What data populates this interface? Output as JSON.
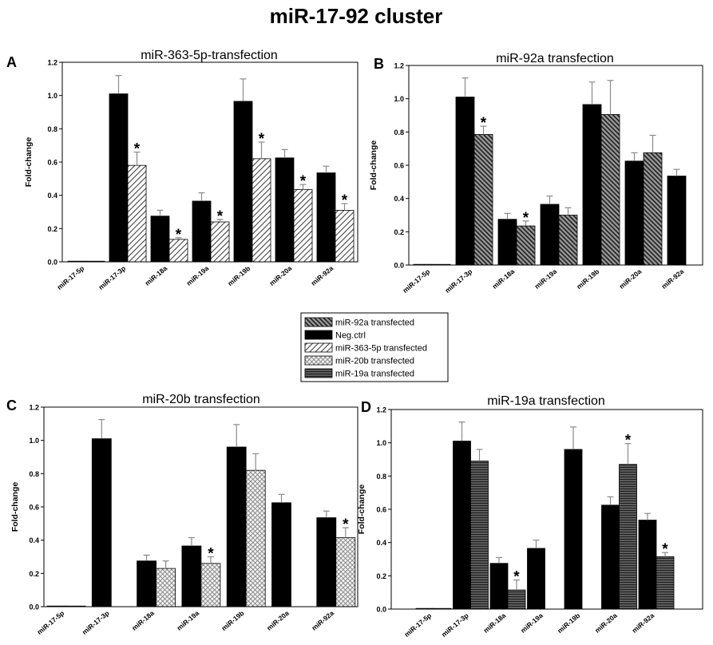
{
  "title": "miR-17-92 cluster",
  "legend": {
    "items": [
      {
        "label": "miR-92a transfected"
      },
      {
        "label": "Neg.ctrl"
      },
      {
        "label": "miR-363-5p transfected"
      },
      {
        "label": "miR-20b transfected"
      },
      {
        "label": "miR-19a transfected"
      }
    ]
  },
  "chart_data": [
    {
      "panel": "A",
      "type": "bar",
      "title": "miR-363-5p-transfection",
      "ylabel": "Fold-change",
      "ylim": [
        0,
        1.2
      ],
      "yticks": [
        "0.0",
        "0.2",
        "0.4",
        "0.6",
        "0.8",
        "1.0",
        "1.2"
      ],
      "significance_marker": "*",
      "categories": [
        "miR-17-5p",
        "miR-17-3p",
        "miR-18a",
        "miR-19a",
        "miR-19b",
        "miR-20a",
        "miR-92a"
      ],
      "series": [
        {
          "name": "Neg.ctrl",
          "values": [
            0.004,
            1.01,
            0.275,
            0.365,
            0.965,
            0.625,
            0.535
          ],
          "errors": [
            0,
            0.11,
            0.035,
            0.05,
            0.135,
            0.05,
            0.04
          ]
        },
        {
          "name": "miR-363-5p transfected",
          "values": [
            0.003,
            0.58,
            0.135,
            0.24,
            0.62,
            0.435,
            0.31
          ],
          "errors": [
            0,
            0.08,
            0.01,
            0.015,
            0.1,
            0.03,
            0.04
          ],
          "significant": [
            false,
            true,
            true,
            true,
            true,
            true,
            true
          ]
        }
      ]
    },
    {
      "panel": "B",
      "type": "bar",
      "title": "miR-92a transfection",
      "ylabel": "Fold-change",
      "ylim": [
        0,
        1.2
      ],
      "yticks": [
        "0.0",
        "0.2",
        "0.4",
        "0.6",
        "0.8",
        "1.0",
        "1.2"
      ],
      "significance_marker": "*",
      "categories": [
        "miR-17-5p",
        "miR-17-3p",
        "miR-18a",
        "miR-19a",
        "miR-19b",
        "miR-20a",
        "miR-92a"
      ],
      "series": [
        {
          "name": "Neg.ctrl",
          "values": [
            0.004,
            1.01,
            0.275,
            0.365,
            0.965,
            0.625,
            0.535
          ],
          "errors": [
            0,
            0.115,
            0.035,
            0.05,
            0.135,
            0.05,
            0.04
          ]
        },
        {
          "name": "miR-92a transfected",
          "values": [
            0.003,
            0.785,
            0.235,
            0.3,
            0.905,
            0.675,
            null
          ],
          "errors": [
            0,
            0.05,
            0.03,
            0.045,
            0.205,
            0.105,
            null
          ],
          "significant": [
            false,
            true,
            true,
            false,
            false,
            false,
            false
          ]
        }
      ]
    },
    {
      "panel": "C",
      "type": "bar",
      "title": "miR-20b transfection",
      "ylabel": "Fold-change",
      "ylim": [
        0,
        1.2
      ],
      "yticks": [
        "0.0",
        "0.2",
        "0.4",
        "0.6",
        "0.8",
        "1.0",
        "1.2"
      ],
      "significance_marker": "*",
      "categories": [
        "miR-17-5p",
        "miR-17-3p",
        "miR-18a",
        "miR-19a",
        "miR-19b",
        "miR-20a",
        "miR-92a"
      ],
      "series": [
        {
          "name": "Neg.ctrl",
          "values": [
            0.004,
            1.01,
            0.275,
            0.365,
            0.96,
            0.625,
            0.535
          ],
          "errors": [
            0,
            0.115,
            0.035,
            0.05,
            0.135,
            0.05,
            0.04
          ]
        },
        {
          "name": "miR-20b transfected",
          "values": [
            0.003,
            null,
            0.23,
            0.26,
            0.82,
            null,
            0.415
          ],
          "errors": [
            0,
            null,
            0.045,
            0.04,
            0.1,
            null,
            0.06
          ],
          "significant": [
            false,
            false,
            false,
            true,
            false,
            false,
            true
          ]
        }
      ]
    },
    {
      "panel": "D",
      "type": "bar",
      "title": "miR-19a transfection",
      "ylabel": "Fold-change",
      "ylim": [
        0,
        1.2
      ],
      "yticks": [
        "0.0",
        "0.2",
        "0.4",
        "0.6",
        "0.8",
        "1.0",
        "1.2"
      ],
      "significance_marker": "*",
      "categories": [
        "miR-17-5p",
        "miR-17-3p",
        "miR-18a",
        "miR-19a",
        "miR-19b",
        "miR-20a",
        "miR-92a"
      ],
      "series": [
        {
          "name": "Neg.ctrl",
          "values": [
            0.004,
            1.01,
            0.275,
            0.365,
            0.96,
            0.625,
            0.535
          ],
          "errors": [
            0,
            0.115,
            0.035,
            0.05,
            0.135,
            0.05,
            0.04
          ]
        },
        {
          "name": "miR-19a transfected",
          "values": [
            0.003,
            0.89,
            0.115,
            null,
            null,
            0.87,
            0.315
          ],
          "errors": [
            0,
            0.07,
            0.06,
            null,
            null,
            0.125,
            0.025
          ],
          "significant": [
            false,
            false,
            true,
            false,
            false,
            true,
            true
          ]
        }
      ]
    }
  ]
}
